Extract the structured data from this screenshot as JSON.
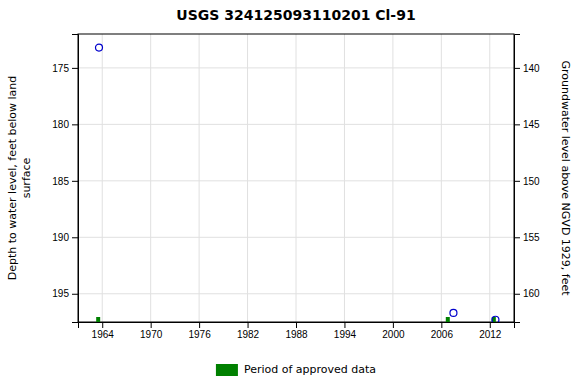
{
  "chart_data": {
    "type": "scatter",
    "title": "USGS 324125093110201 Cl-91",
    "ylabel": "Depth to water level, feet below land\n surface",
    "y2label": "Groundwater level above NGVD 1929, feet",
    "xlim": [
      1961.0,
      2015.0
    ],
    "xticks": [
      1964,
      1970,
      1976,
      1982,
      1988,
      1994,
      2000,
      2006,
      2012
    ],
    "ylim": [
      197.5,
      172.0
    ],
    "yticks": [
      175,
      180,
      185,
      190,
      195
    ],
    "y2lim": [
      162.5,
      137.0
    ],
    "y2ticks": [
      160,
      155,
      150,
      145,
      140
    ],
    "grid": true,
    "legend": "bottom",
    "series": [
      {
        "x": [
          1963.6,
          2007.5,
          2012.7
        ],
        "values": [
          173.2,
          196.7,
          197.3
        ],
        "color": "#0000cc",
        "marker": "open-circle"
      }
    ],
    "approved_data": {
      "name": "Period of approved data",
      "x": [
        1963.5,
        2006.8,
        2012.5
      ],
      "color": "#008000"
    }
  }
}
